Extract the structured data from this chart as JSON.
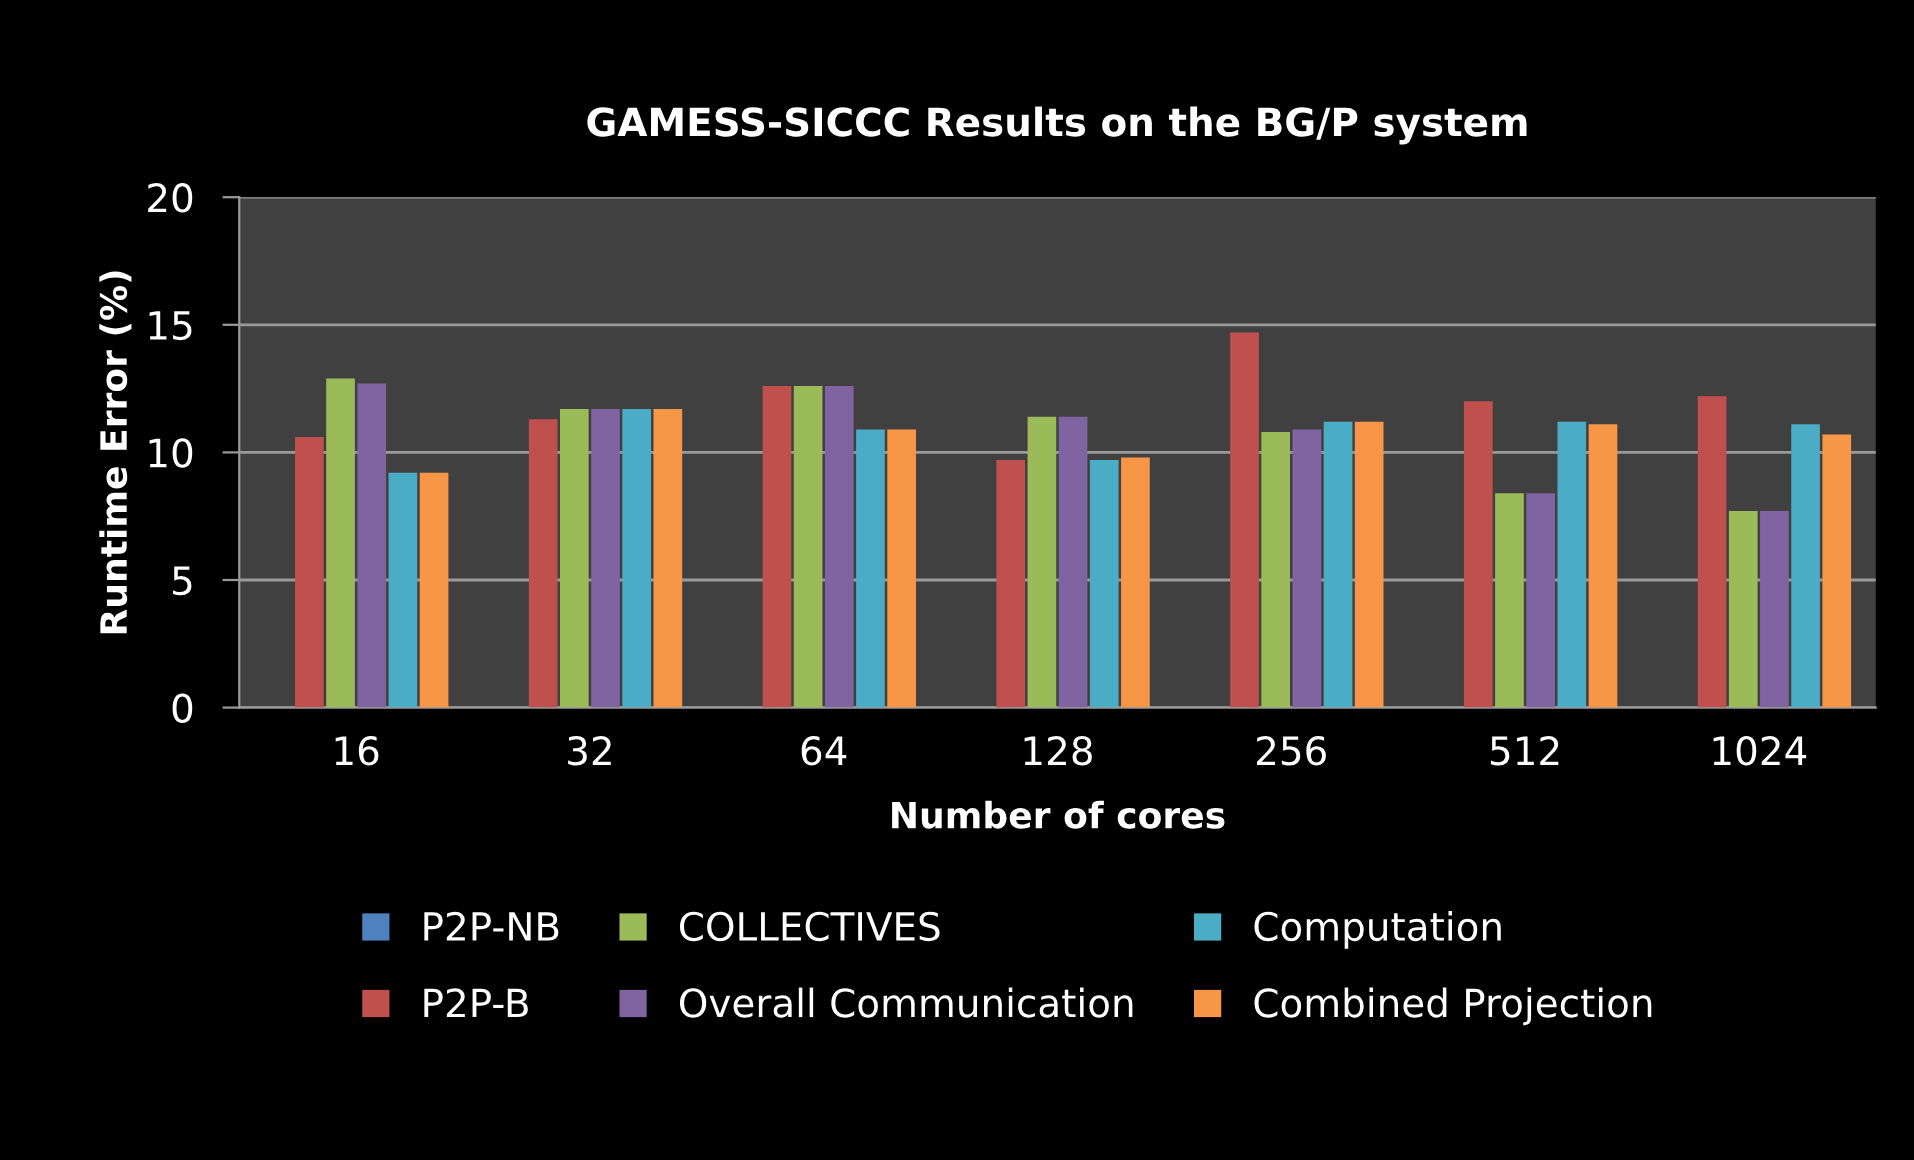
{
  "chart_data": {
    "type": "bar",
    "title": "GAMESS-SICCC Results on the BG/P system",
    "xlabel": "Number of cores",
    "ylabel": "Runtime Error (%)",
    "categories": [
      "16",
      "32",
      "64",
      "128",
      "256",
      "512",
      "1024"
    ],
    "series": [
      {
        "name": "P2P-NB",
        "color": "#4f81bd",
        "values": [
          null,
          null,
          null,
          null,
          null,
          null,
          null
        ]
      },
      {
        "name": "P2P-B",
        "color": "#c0504d",
        "values": [
          10.6,
          11.3,
          12.6,
          9.7,
          14.7,
          12.0,
          12.2
        ]
      },
      {
        "name": "COLLECTIVES",
        "color": "#9bbb59",
        "values": [
          12.9,
          11.7,
          12.6,
          11.4,
          10.8,
          8.4,
          7.7
        ]
      },
      {
        "name": "Overall Communication",
        "color": "#8064a2",
        "values": [
          12.7,
          11.7,
          12.6,
          11.4,
          10.9,
          8.4,
          7.7
        ]
      },
      {
        "name": "Computation",
        "color": "#4bacc6",
        "values": [
          9.2,
          11.7,
          10.9,
          9.7,
          11.2,
          11.2,
          11.1
        ]
      },
      {
        "name": "Combined Projection",
        "color": "#f79646",
        "values": [
          9.2,
          11.7,
          10.9,
          9.8,
          11.2,
          11.1,
          10.7
        ]
      }
    ],
    "ylim": [
      0,
      20
    ],
    "yticks": [
      0,
      5,
      10,
      15,
      20
    ],
    "grid": "y",
    "legend": "bottom"
  }
}
